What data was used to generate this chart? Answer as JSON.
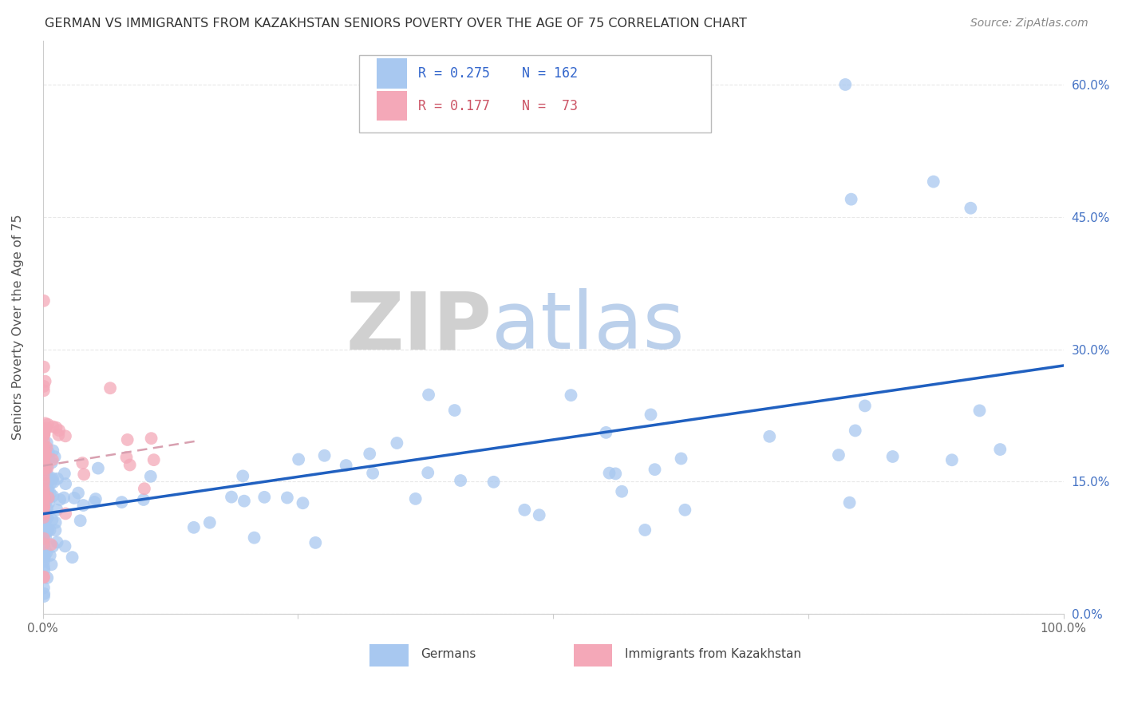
{
  "title": "GERMAN VS IMMIGRANTS FROM KAZAKHSTAN SENIORS POVERTY OVER THE AGE OF 75 CORRELATION CHART",
  "source": "Source: ZipAtlas.com",
  "ylabel": "Seniors Poverty Over the Age of 75",
  "watermark_zip": "ZIP",
  "watermark_atlas": "atlas",
  "legend1_R": "0.275",
  "legend1_N": "162",
  "legend2_R": "0.177",
  "legend2_N": "73",
  "legend1_label": "Germans",
  "legend2_label": "Immigrants from Kazakhstan",
  "xlim": [
    0.0,
    1.0
  ],
  "ylim": [
    0.0,
    0.65
  ],
  "yticks": [
    0.0,
    0.15,
    0.3,
    0.45,
    0.6
  ],
  "ytick_labels": [
    "0.0%",
    "15.0%",
    "30.0%",
    "45.0%",
    "60.0%"
  ],
  "xticks": [
    0.0,
    0.25,
    0.5,
    0.75,
    1.0
  ],
  "xtick_labels": [
    "0.0%",
    "",
    "",
    "",
    "100.0%"
  ],
  "blue_scatter_color": "#a8c8f0",
  "pink_scatter_color": "#f4a8b8",
  "blue_line_color": "#2060c0",
  "pink_line_color": "#d8a0b0",
  "background_color": "#ffffff",
  "grid_color": "#e8e8e8",
  "title_color": "#333333",
  "watermark_zip_color": "#c8c8c8",
  "watermark_atlas_color": "#b0c8e8",
  "right_tick_color": "#4472c4",
  "source_color": "#888888"
}
